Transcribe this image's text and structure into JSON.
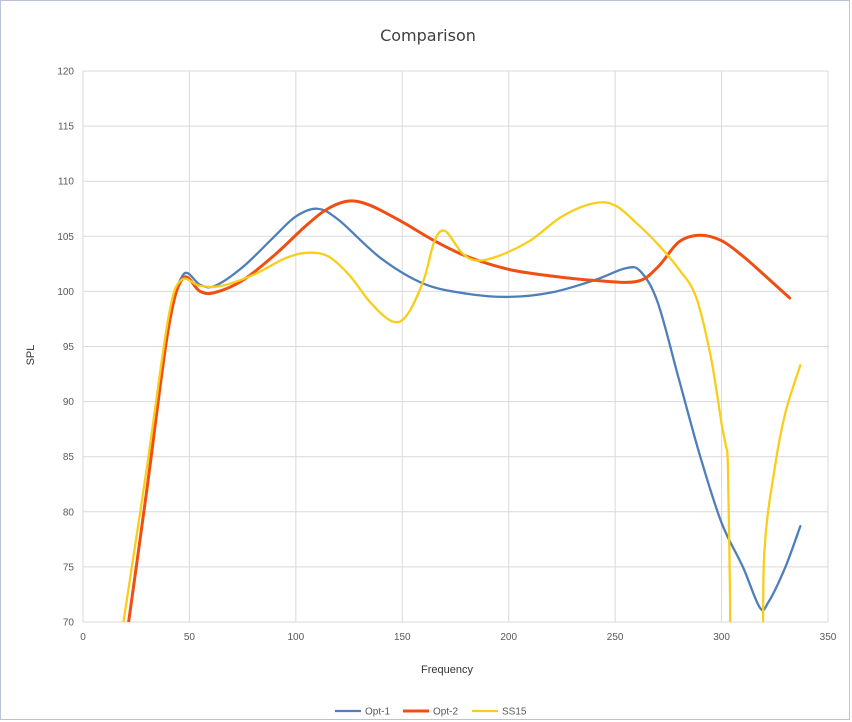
{
  "chart_data": {
    "type": "line",
    "title": "Comparison",
    "xlabel": "Frequency",
    "ylabel": "SPL",
    "xlim": [
      0,
      350
    ],
    "ylim": [
      70,
      120
    ],
    "xticks": [
      0,
      50,
      100,
      150,
      200,
      250,
      300,
      350
    ],
    "yticks": [
      70,
      75,
      80,
      85,
      90,
      95,
      100,
      105,
      110,
      115,
      120
    ],
    "grid": true,
    "legend_position": "bottom",
    "series": [
      {
        "name": "Opt-1",
        "color": "#4f7fba",
        "points": [
          [
            20,
            68
          ],
          [
            30,
            82
          ],
          [
            40,
            96.5
          ],
          [
            47,
            101.5
          ],
          [
            55,
            100.6
          ],
          [
            62,
            100.5
          ],
          [
            75,
            102.2
          ],
          [
            90,
            105
          ],
          [
            100,
            106.8
          ],
          [
            110,
            107.5
          ],
          [
            120,
            106.5
          ],
          [
            140,
            103
          ],
          [
            160,
            100.7
          ],
          [
            180,
            99.8
          ],
          [
            200,
            99.5
          ],
          [
            220,
            99.9
          ],
          [
            240,
            101
          ],
          [
            255,
            102.1
          ],
          [
            262,
            101.8
          ],
          [
            270,
            99
          ],
          [
            280,
            92
          ],
          [
            290,
            85
          ],
          [
            300,
            79
          ],
          [
            310,
            75
          ],
          [
            318,
            71.3
          ],
          [
            322,
            71.8
          ],
          [
            330,
            75
          ],
          [
            337,
            78.7
          ]
        ]
      },
      {
        "name": "Opt-2",
        "color": "#f04f14",
        "points": [
          [
            20,
            68
          ],
          [
            30,
            82
          ],
          [
            40,
            96.5
          ],
          [
            47,
            101.2
          ],
          [
            55,
            100
          ],
          [
            62,
            99.9
          ],
          [
            75,
            101
          ],
          [
            90,
            103.3
          ],
          [
            105,
            106
          ],
          [
            115,
            107.5
          ],
          [
            125,
            108.2
          ],
          [
            135,
            107.8
          ],
          [
            150,
            106.3
          ],
          [
            165,
            104.6
          ],
          [
            180,
            103.2
          ],
          [
            200,
            102
          ],
          [
            220,
            101.4
          ],
          [
            240,
            101
          ],
          [
            260,
            100.9
          ],
          [
            270,
            102.2
          ],
          [
            280,
            104.5
          ],
          [
            290,
            105.1
          ],
          [
            300,
            104.6
          ],
          [
            310,
            103.2
          ],
          [
            320,
            101.5
          ],
          [
            332,
            99.4
          ]
        ]
      },
      {
        "name": "SS15",
        "color": "#f9ce1a",
        "points": [
          [
            19,
            70
          ],
          [
            30,
            84
          ],
          [
            40,
            97.5
          ],
          [
            46,
            101
          ],
          [
            55,
            100.5
          ],
          [
            65,
            100.5
          ],
          [
            80,
            101.5
          ],
          [
            95,
            103
          ],
          [
            105,
            103.5
          ],
          [
            115,
            103.2
          ],
          [
            125,
            101.5
          ],
          [
            135,
            99
          ],
          [
            145,
            97.3
          ],
          [
            152,
            97.8
          ],
          [
            160,
            101
          ],
          [
            165,
            104.5
          ],
          [
            170,
            105.5
          ],
          [
            178,
            103.5
          ],
          [
            185,
            102.8
          ],
          [
            195,
            103.2
          ],
          [
            210,
            104.6
          ],
          [
            225,
            106.8
          ],
          [
            240,
            108
          ],
          [
            250,
            107.8
          ],
          [
            260,
            106.2
          ],
          [
            270,
            104.3
          ],
          [
            280,
            102
          ],
          [
            288,
            99.5
          ],
          [
            295,
            94
          ],
          [
            300,
            88
          ],
          [
            302,
            86
          ],
          [
            303,
            84
          ],
          [
            304,
            72
          ],
          [
            305,
            60
          ],
          [
            318,
            60
          ],
          [
            320,
            76
          ],
          [
            325,
            84
          ],
          [
            330,
            89
          ],
          [
            337,
            93.3
          ]
        ]
      }
    ]
  }
}
